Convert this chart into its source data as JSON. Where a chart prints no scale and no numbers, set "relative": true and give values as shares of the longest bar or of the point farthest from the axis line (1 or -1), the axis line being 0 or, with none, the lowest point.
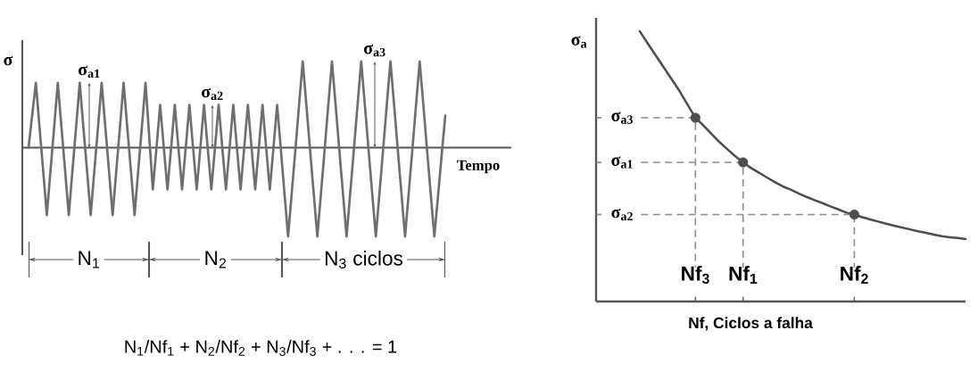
{
  "chart_data": [
    {
      "type": "line",
      "relative": true,
      "tick_labels": false,
      "xlabel": "Tempo",
      "ylabel": "σ",
      "color": "#6e6e6e",
      "categories": [
        null,
        null,
        null,
        null,
        null,
        null,
        null,
        null,
        null,
        null,
        null,
        null,
        null,
        null,
        null,
        null,
        null,
        null,
        null,
        null,
        null,
        null,
        null,
        null,
        null,
        null,
        null,
        null,
        null,
        null,
        null,
        null,
        null,
        null,
        null,
        null,
        null,
        null,
        null,
        null,
        null,
        null,
        null,
        null,
        null,
        null,
        null,
        null,
        null,
        null,
        null,
        null,
        null,
        null,
        null,
        null,
        null,
        null,
        null,
        null,
        null,
        null,
        null,
        null,
        null,
        null,
        null,
        null,
        null,
        null,
        null,
        null,
        null,
        null,
        null,
        null,
        null,
        null,
        null,
        null,
        null,
        null,
        null,
        null,
        null,
        null,
        null,
        null,
        null,
        null,
        null,
        null,
        null,
        null,
        null,
        null,
        null,
        null,
        null,
        null,
        null,
        null,
        null,
        null,
        null,
        null,
        null,
        null,
        null,
        null,
        null,
        null,
        null,
        null,
        null
      ],
      "values": [
        0,
        0.37,
        0.73,
        0.23,
        -0.26,
        -0.76,
        -0.26,
        0.23,
        0.73,
        0.23,
        -0.26,
        -0.76,
        -0.26,
        0.23,
        0.73,
        0.23,
        -0.26,
        -0.76,
        -0.26,
        0.23,
        0.73,
        0.23,
        -0.26,
        -0.76,
        -0.26,
        0.23,
        0.73,
        0.23,
        -0.26,
        -0.76,
        -0.26,
        0.23,
        0.73,
        0.13,
        -0.47,
        0.0,
        0.48,
        0.0,
        -0.47,
        0.0,
        0.48,
        0.0,
        -0.47,
        0.0,
        0.48,
        0.0,
        -0.47,
        0.0,
        0.48,
        0.0,
        -0.47,
        0.0,
        0.48,
        0.0,
        -0.47,
        0.0,
        0.48,
        0.0,
        -0.47,
        0.0,
        0.48,
        0.0,
        -0.47,
        0.0,
        0.48,
        0.0,
        -0.47,
        0.0,
        0.48,
        -0.01,
        -0.51,
        -1.0,
        -0.51,
        -0.02,
        0.48,
        0.97,
        0.48,
        -0.02,
        -0.51,
        -1.0,
        -0.51,
        -0.02,
        0.48,
        0.97,
        0.48,
        -0.02,
        -0.51,
        -1.0,
        -0.51,
        -0.02,
        0.48,
        0.97,
        0.48,
        -0.02,
        -0.51,
        -1.0,
        -0.51,
        -0.02,
        0.48,
        0.97,
        0.48,
        -0.02,
        -0.51,
        -1.0,
        -0.51,
        -0.02,
        0.48,
        0.97,
        0.48,
        -0.02,
        -0.51,
        -1.0,
        -0.55,
        -0.09,
        0.36
      ],
      "annotations": [
        "σ$_{a1}$",
        "σ$_{a2}$",
        "σ$_{a3}$",
        "N$_{1}$",
        "N$_{2}$",
        "N$_{3}$ ciclos",
        "N$_{1}$/Nf$_{1}$ + N$_{2}$/Nf$_{2}$ + N$_{3}$/Nf$_{3}$ + . . . = 1"
      ]
    },
    {
      "type": "line",
      "relative": true,
      "tick_labels": "x",
      "xlabel": "Nf, Ciclos a falha",
      "ylabel": "σ$_{a}$",
      "categories": [
        null,
        null,
        null,
        null,
        null,
        null,
        null,
        "Nf$_{3}$",
        null,
        null,
        null,
        null,
        null,
        "Nf$_{1}$",
        null,
        null,
        null,
        null,
        null,
        null,
        null,
        null,
        null,
        null,
        null,
        null,
        null,
        "Nf$_{2}$",
        null,
        null,
        null,
        null,
        null,
        null,
        null,
        null,
        null,
        null,
        null,
        null,
        null,
        null
      ],
      "series": [
        {
          "type": "line",
          "color": "#4d4d4d",
          "values": [
            1.0,
            0.955,
            0.911,
            0.867,
            0.823,
            0.779,
            0.729,
            0.68,
            0.652,
            0.621,
            0.591,
            0.564,
            0.538,
            0.515,
            0.494,
            0.477,
            0.459,
            0.442,
            0.426,
            0.414,
            0.4,
            0.387,
            0.375,
            0.364,
            0.352,
            0.341,
            0.329,
            0.322,
            0.312,
            0.304,
            0.296,
            0.288,
            0.281,
            0.274,
            0.267,
            0.26,
            0.254,
            0.248,
            0.242,
            0.238,
            0.235,
            0.231
          ]
        },
        {
          "type": "scatter",
          "color": "#4d4d4d",
          "marker": "circle",
          "values": [
            null,
            null,
            null,
            null,
            null,
            null,
            null,
            0.68,
            null,
            null,
            null,
            null,
            null,
            0.515,
            null,
            null,
            null,
            null,
            null,
            null,
            null,
            null,
            null,
            null,
            null,
            null,
            null,
            0.322,
            null,
            null,
            null,
            null,
            null,
            null,
            null,
            null,
            null,
            null,
            null,
            null,
            null,
            null
          ]
        }
      ],
      "ref_lines": [
        {
          "axis": "y",
          "value": 0.68,
          "label": "σ$_{a3}$",
          "line_style": "dashed",
          "color": "#8c8c8c"
        },
        {
          "axis": "y",
          "value": 0.515,
          "label": "σ$_{a1}$",
          "line_style": "dashed",
          "color": "#8c8c8c"
        },
        {
          "axis": "y",
          "value": 0.322,
          "label": "σ$_{a2}$",
          "line_style": "dashed",
          "color": "#8c8c8c"
        }
      ]
    }
  ]
}
